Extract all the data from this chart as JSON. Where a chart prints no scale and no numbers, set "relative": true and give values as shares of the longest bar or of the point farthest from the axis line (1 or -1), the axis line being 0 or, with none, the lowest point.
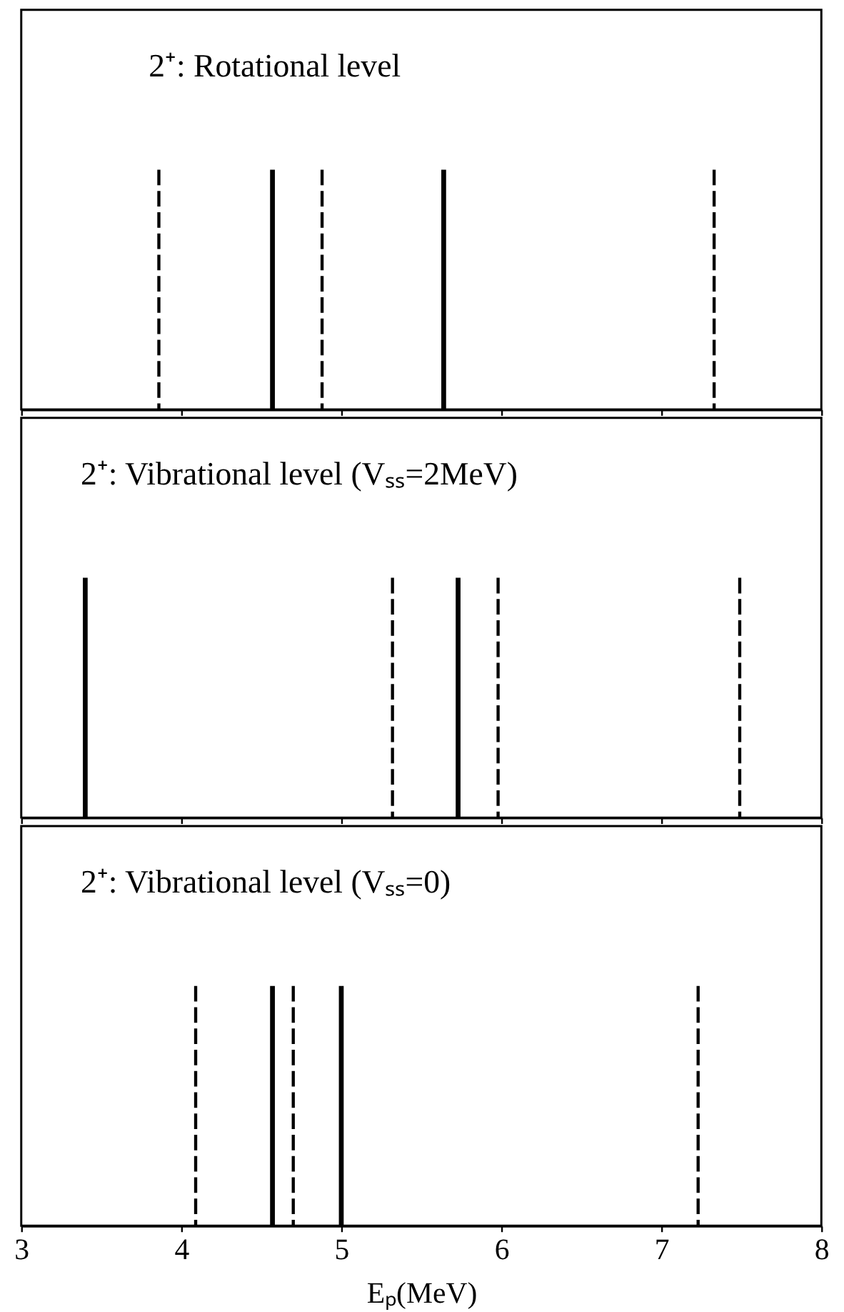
{
  "chart_data": [
    {
      "type": "bar",
      "title": "2⁺: Rotational level",
      "relative": true,
      "xlim": [
        3,
        8
      ],
      "xticks": [
        3,
        4,
        5,
        6,
        7,
        8
      ],
      "tick_labels": false,
      "series": [
        {
          "color": "#000000",
          "x": [
            4.57,
            5.64
          ],
          "values": [
            1,
            1
          ]
        }
      ],
      "ref_lines": [
        {
          "axis": "x",
          "value": 3.86,
          "line_style": "dashed",
          "color": "#000000"
        },
        {
          "axis": "x",
          "value": 4.88,
          "line_style": "dashed",
          "color": "#000000"
        },
        {
          "axis": "x",
          "value": 7.33,
          "line_style": "dashed",
          "color": "#000000"
        }
      ]
    },
    {
      "type": "bar",
      "title": "2⁺: Vibrational level (Vₛₛ=2MeV)",
      "relative": true,
      "xlim": [
        3,
        8
      ],
      "xticks": [
        3,
        4,
        5,
        6,
        7,
        8
      ],
      "tick_labels": false,
      "series": [
        {
          "color": "#000000",
          "x": [
            3.4,
            5.73
          ],
          "values": [
            1,
            1
          ]
        }
      ],
      "ref_lines": [
        {
          "axis": "x",
          "value": 5.32,
          "line_style": "dashed",
          "color": "#000000"
        },
        {
          "axis": "x",
          "value": 5.98,
          "line_style": "dashed",
          "color": "#000000"
        },
        {
          "axis": "x",
          "value": 7.49,
          "line_style": "dashed",
          "color": "#000000"
        }
      ]
    },
    {
      "type": "bar",
      "title": "2⁺: Vibrational level (Vₛₛ=0)",
      "relative": true,
      "xlim": [
        3,
        8
      ],
      "xticks": [
        3,
        4,
        5,
        6,
        7,
        8
      ],
      "tick_labels": "x",
      "xlabel": "Eₚ(MeV)",
      "series": [
        {
          "color": "#000000",
          "x": [
            4.57,
            5.0
          ],
          "values": [
            1,
            1
          ]
        }
      ],
      "ref_lines": [
        {
          "axis": "x",
          "value": 4.09,
          "line_style": "dashed",
          "color": "#000000"
        },
        {
          "axis": "x",
          "value": 4.7,
          "line_style": "dashed",
          "color": "#000000"
        },
        {
          "axis": "x",
          "value": 7.23,
          "line_style": "dashed",
          "color": "#000000"
        }
      ]
    }
  ]
}
